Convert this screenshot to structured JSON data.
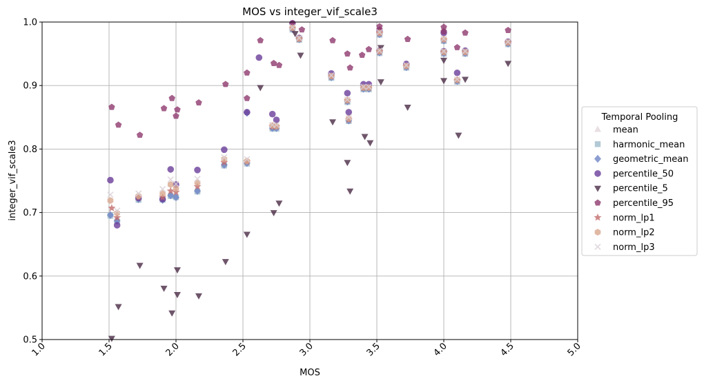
{
  "chart_data": {
    "type": "scatter",
    "title": "MOS vs integer_vif_scale3",
    "xlabel": "MOS",
    "ylabel": "integer_vif_scale3",
    "xlim": [
      1.0,
      5.0
    ],
    "ylim": [
      0.5,
      1.0
    ],
    "xticks": [
      "1.0",
      "1.5",
      "2.0",
      "2.5",
      "3.0",
      "3.5",
      "4.0",
      "4.5",
      "5.0"
    ],
    "yticks": [
      "0.5",
      "0.6",
      "0.7",
      "0.8",
      "0.9",
      "1.0"
    ],
    "grid": true,
    "legend": {
      "title": "Temporal Pooling",
      "placement": "right"
    },
    "series": [
      {
        "name": "mean",
        "marker": "triangle",
        "color": "#e3d7db",
        "points": [
          [
            1.51,
            0.697
          ],
          [
            1.56,
            0.688
          ],
          [
            1.72,
            0.722
          ],
          [
            1.9,
            0.722
          ],
          [
            1.96,
            0.728
          ],
          [
            2.0,
            0.725
          ],
          [
            2.16,
            0.735
          ],
          [
            2.36,
            0.776
          ],
          [
            2.53,
            0.78
          ],
          [
            2.72,
            0.834
          ],
          [
            2.75,
            0.834
          ],
          [
            2.87,
            0.99
          ],
          [
            2.92,
            0.974
          ],
          [
            3.16,
            0.914
          ],
          [
            3.28,
            0.876
          ],
          [
            3.29,
            0.846
          ],
          [
            3.4,
            0.896
          ],
          [
            3.44,
            0.896
          ],
          [
            3.52,
            0.953
          ],
          [
            3.52,
            0.982
          ],
          [
            3.72,
            0.93
          ],
          [
            4.0,
            0.952
          ],
          [
            4.0,
            0.972
          ],
          [
            4.1,
            0.908
          ],
          [
            4.16,
            0.952
          ],
          [
            4.48,
            0.967
          ]
        ]
      },
      {
        "name": "harmonic_mean",
        "marker": "square",
        "color": "#9fbccc",
        "points": [
          [
            1.51,
            0.695
          ],
          [
            1.56,
            0.686
          ],
          [
            1.72,
            0.72
          ],
          [
            1.9,
            0.72
          ],
          [
            1.96,
            0.726
          ],
          [
            2.0,
            0.724
          ],
          [
            2.16,
            0.733
          ],
          [
            2.36,
            0.774
          ],
          [
            2.53,
            0.777
          ],
          [
            2.72,
            0.832
          ],
          [
            2.75,
            0.832
          ],
          [
            2.87,
            0.988
          ],
          [
            2.92,
            0.972
          ],
          [
            3.16,
            0.912
          ],
          [
            3.28,
            0.874
          ],
          [
            3.29,
            0.844
          ],
          [
            3.4,
            0.894
          ],
          [
            3.44,
            0.894
          ],
          [
            3.52,
            0.951
          ],
          [
            3.52,
            0.98
          ],
          [
            3.72,
            0.928
          ],
          [
            4.0,
            0.95
          ],
          [
            4.0,
            0.97
          ],
          [
            4.1,
            0.906
          ],
          [
            4.16,
            0.95
          ],
          [
            4.48,
            0.965
          ]
        ]
      },
      {
        "name": "geometric_mean",
        "marker": "diamond",
        "color": "#6f86c6",
        "points": [
          [
            1.51,
            0.696
          ],
          [
            1.56,
            0.687
          ],
          [
            1.72,
            0.721
          ],
          [
            1.9,
            0.72
          ],
          [
            1.96,
            0.727
          ],
          [
            2.0,
            0.724
          ],
          [
            2.16,
            0.734
          ],
          [
            2.36,
            0.775
          ],
          [
            2.53,
            0.778
          ],
          [
            2.53,
            0.857
          ],
          [
            2.72,
            0.833
          ],
          [
            2.75,
            0.833
          ],
          [
            2.87,
            0.989
          ],
          [
            2.92,
            0.973
          ],
          [
            3.16,
            0.913
          ],
          [
            3.28,
            0.875
          ],
          [
            3.29,
            0.845
          ],
          [
            3.4,
            0.895
          ],
          [
            3.44,
            0.895
          ],
          [
            3.52,
            0.952
          ],
          [
            3.52,
            0.981
          ],
          [
            3.72,
            0.929
          ],
          [
            4.0,
            0.951
          ],
          [
            4.0,
            0.971
          ],
          [
            4.1,
            0.907
          ],
          [
            4.16,
            0.951
          ],
          [
            4.48,
            0.966
          ]
        ]
      },
      {
        "name": "percentile_50",
        "marker": "circle",
        "color": "#6a3d9a",
        "points": [
          [
            1.51,
            0.751
          ],
          [
            1.56,
            0.68
          ],
          [
            1.72,
            0.723
          ],
          [
            1.9,
            0.721
          ],
          [
            1.96,
            0.768
          ],
          [
            2.0,
            0.744
          ],
          [
            2.16,
            0.767
          ],
          [
            2.36,
            0.799
          ],
          [
            2.53,
            0.858
          ],
          [
            2.62,
            0.944
          ],
          [
            2.72,
            0.855
          ],
          [
            2.75,
            0.846
          ],
          [
            2.87,
            0.998
          ],
          [
            2.92,
            0.975
          ],
          [
            3.16,
            0.919
          ],
          [
            3.28,
            0.888
          ],
          [
            3.29,
            0.858
          ],
          [
            3.4,
            0.902
          ],
          [
            3.44,
            0.902
          ],
          [
            3.52,
            0.955
          ],
          [
            3.52,
            0.985
          ],
          [
            3.72,
            0.934
          ],
          [
            4.0,
            0.954
          ],
          [
            4.0,
            0.983
          ],
          [
            4.1,
            0.92
          ],
          [
            4.16,
            0.955
          ],
          [
            4.48,
            0.969
          ]
        ]
      },
      {
        "name": "percentile_5",
        "marker": "triangle-down",
        "color": "#4a2b45",
        "points": [
          [
            1.52,
            0.502
          ],
          [
            1.57,
            0.552
          ],
          [
            1.73,
            0.617
          ],
          [
            1.91,
            0.581
          ],
          [
            1.97,
            0.542
          ],
          [
            2.01,
            0.61
          ],
          [
            2.01,
            0.571
          ],
          [
            2.17,
            0.569
          ],
          [
            2.37,
            0.623
          ],
          [
            2.53,
            0.666
          ],
          [
            2.63,
            0.897
          ],
          [
            2.73,
            0.7
          ],
          [
            2.77,
            0.715
          ],
          [
            2.89,
            0.982
          ],
          [
            2.93,
            0.948
          ],
          [
            3.17,
            0.843
          ],
          [
            3.28,
            0.779
          ],
          [
            3.3,
            0.734
          ],
          [
            3.41,
            0.82
          ],
          [
            3.45,
            0.81
          ],
          [
            3.53,
            0.906
          ],
          [
            3.53,
            0.96
          ],
          [
            3.73,
            0.866
          ],
          [
            4.0,
            0.94
          ],
          [
            4.0,
            0.908
          ],
          [
            4.11,
            0.822
          ],
          [
            4.16,
            0.91
          ],
          [
            4.48,
            0.935
          ]
        ]
      },
      {
        "name": "percentile_95",
        "marker": "pentagon",
        "color": "#8e3a6e",
        "points": [
          [
            1.52,
            0.866
          ],
          [
            1.57,
            0.838
          ],
          [
            1.73,
            0.822
          ],
          [
            1.91,
            0.864
          ],
          [
            1.97,
            0.88
          ],
          [
            2.01,
            0.862
          ],
          [
            2.0,
            0.852
          ],
          [
            2.17,
            0.873
          ],
          [
            2.37,
            0.902
          ],
          [
            2.53,
            0.92
          ],
          [
            2.53,
            0.88
          ],
          [
            2.63,
            0.971
          ],
          [
            2.73,
            0.935
          ],
          [
            2.77,
            0.932
          ],
          [
            2.87,
            0.998
          ],
          [
            2.94,
            0.988
          ],
          [
            3.17,
            0.971
          ],
          [
            3.28,
            0.95
          ],
          [
            3.3,
            0.928
          ],
          [
            3.39,
            0.948
          ],
          [
            3.44,
            0.957
          ],
          [
            3.52,
            0.993
          ],
          [
            3.52,
            0.988
          ],
          [
            3.73,
            0.973
          ],
          [
            4.0,
            0.992
          ],
          [
            4.0,
            0.985
          ],
          [
            4.1,
            0.96
          ],
          [
            4.16,
            0.983
          ],
          [
            4.48,
            0.987
          ]
        ]
      },
      {
        "name": "norm_lp1",
        "marker": "star",
        "color": "#c26a6a",
        "points": [
          [
            1.52,
            0.707
          ],
          [
            1.56,
            0.692
          ],
          [
            1.72,
            0.724
          ],
          [
            1.9,
            0.724
          ],
          [
            1.96,
            0.734
          ],
          [
            2.0,
            0.732
          ],
          [
            2.16,
            0.741
          ],
          [
            2.36,
            0.779
          ],
          [
            2.53,
            0.78
          ],
          [
            2.72,
            0.835
          ],
          [
            2.75,
            0.835
          ],
          [
            2.87,
            0.99
          ],
          [
            2.92,
            0.973
          ],
          [
            3.16,
            0.914
          ],
          [
            3.28,
            0.876
          ],
          [
            3.29,
            0.846
          ],
          [
            3.4,
            0.896
          ],
          [
            3.44,
            0.896
          ],
          [
            3.52,
            0.953
          ],
          [
            3.52,
            0.982
          ],
          [
            3.72,
            0.93
          ],
          [
            4.0,
            0.952
          ],
          [
            4.0,
            0.972
          ],
          [
            4.1,
            0.908
          ],
          [
            4.16,
            0.952
          ],
          [
            4.48,
            0.967
          ]
        ]
      },
      {
        "name": "norm_lp2",
        "marker": "hexagon",
        "color": "#d8a88e",
        "points": [
          [
            1.51,
            0.719
          ],
          [
            1.56,
            0.699
          ],
          [
            1.72,
            0.726
          ],
          [
            1.9,
            0.73
          ],
          [
            1.96,
            0.744
          ],
          [
            2.0,
            0.738
          ],
          [
            2.16,
            0.747
          ],
          [
            2.36,
            0.784
          ],
          [
            2.53,
            0.781
          ],
          [
            2.72,
            0.837
          ],
          [
            2.75,
            0.836
          ],
          [
            2.87,
            0.991
          ],
          [
            2.92,
            0.974
          ],
          [
            3.16,
            0.915
          ],
          [
            3.28,
            0.877
          ],
          [
            3.29,
            0.848
          ],
          [
            3.4,
            0.897
          ],
          [
            3.44,
            0.897
          ],
          [
            3.52,
            0.954
          ],
          [
            3.52,
            0.983
          ],
          [
            3.72,
            0.931
          ],
          [
            4.0,
            0.953
          ],
          [
            4.0,
            0.973
          ],
          [
            4.1,
            0.909
          ],
          [
            4.16,
            0.953
          ],
          [
            4.48,
            0.968
          ]
        ]
      },
      {
        "name": "norm_lp3",
        "marker": "x",
        "color": "#dcd2d8",
        "points": [
          [
            1.51,
            0.728
          ],
          [
            1.56,
            0.703
          ],
          [
            1.72,
            0.73
          ],
          [
            1.9,
            0.737
          ],
          [
            1.96,
            0.752
          ],
          [
            2.0,
            0.745
          ],
          [
            2.16,
            0.753
          ],
          [
            2.36,
            0.787
          ],
          [
            2.53,
            0.784
          ],
          [
            2.72,
            0.838
          ],
          [
            2.75,
            0.838
          ],
          [
            2.87,
            0.992
          ],
          [
            2.92,
            0.975
          ],
          [
            3.16,
            0.916
          ],
          [
            3.28,
            0.878
          ],
          [
            3.29,
            0.85
          ],
          [
            3.4,
            0.898
          ],
          [
            3.44,
            0.898
          ],
          [
            3.52,
            0.955
          ],
          [
            3.52,
            0.984
          ],
          [
            3.72,
            0.932
          ],
          [
            4.0,
            0.954
          ],
          [
            4.0,
            0.974
          ],
          [
            4.1,
            0.91
          ],
          [
            4.16,
            0.954
          ],
          [
            4.48,
            0.969
          ]
        ]
      }
    ]
  }
}
